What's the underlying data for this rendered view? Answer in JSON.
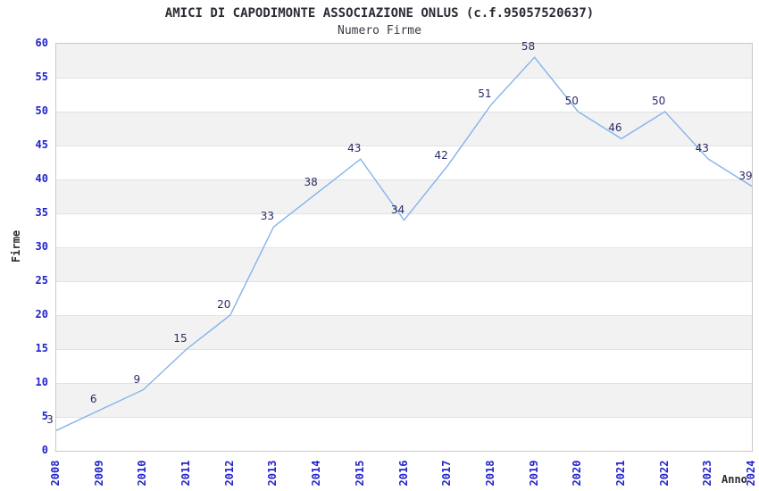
{
  "chart_data": {
    "type": "line",
    "title": "AMICI DI CAPODIMONTE ASSOCIAZIONE ONLUS (c.f.95057520637)",
    "subtitle": "Numero Firme",
    "xlabel": "Anno",
    "ylabel": "Firme",
    "x": [
      2008,
      2009,
      2010,
      2011,
      2012,
      2013,
      2014,
      2015,
      2016,
      2017,
      2018,
      2019,
      2020,
      2021,
      2022,
      2023,
      2024
    ],
    "values": [
      3,
      6,
      9,
      15,
      20,
      33,
      38,
      43,
      34,
      42,
      51,
      58,
      50,
      46,
      50,
      43,
      39
    ],
    "ylim": [
      0,
      60
    ],
    "y_tick_step": 5,
    "grid": "horizontal-only",
    "bands": "alternating gray/white every 5 units",
    "legend": "none",
    "point_labels_shown": true,
    "colors": {
      "line": "#82b4ea",
      "tick_label": "#2222cc",
      "value_label": "#2b2b66",
      "band_gray": "#f2f2f2",
      "gridline": "#e2e2e2",
      "plot_border": "#c9c9c9",
      "title_text": "#2a2a33",
      "background": "#ffffff"
    }
  }
}
